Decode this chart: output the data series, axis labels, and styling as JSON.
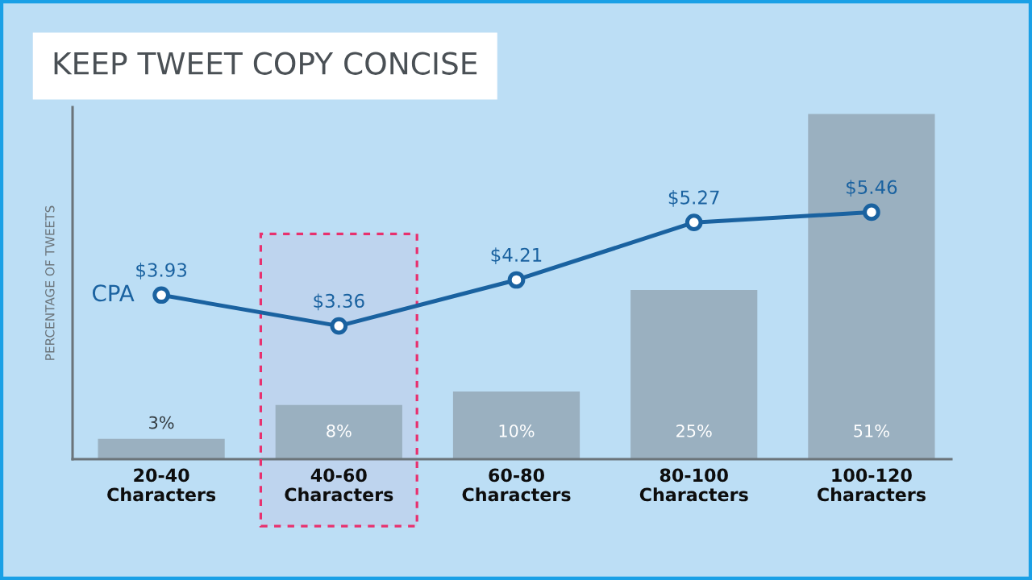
{
  "chart_data": {
    "type": "bar",
    "title": "KEEP TWEET COPY CONCISE",
    "ylabel": "PERCENTAGE OF TWEETS",
    "categories": [
      "20-40 Characters",
      "40-60 Characters",
      "60-80 Characters",
      "80-100 Characters",
      "100-120 Characters"
    ],
    "series": [
      {
        "color": "#9ab0c0",
        "values": [
          3,
          8,
          10,
          25,
          51
        ],
        "value_labels": [
          "3%",
          "8%",
          "10%",
          "25%",
          "51%"
        ]
      },
      {
        "type": "line",
        "name": "CPA",
        "axis": "y2",
        "color": "#1a62a0",
        "marker": "circle",
        "values": [
          3.93,
          3.36,
          4.21,
          5.27,
          5.46
        ],
        "value_labels": [
          "$3.93",
          "$3.36",
          "$4.21",
          "$5.27",
          "$5.46"
        ]
      }
    ],
    "ylim": [
      0,
      52
    ],
    "y2lim": [
      0.9,
      7.4
    ],
    "tick_labels": "x",
    "bands": [
      {
        "axis": "x",
        "from": "40-60 Characters",
        "to": "40-60 Characters",
        "color": "#e8306e"
      }
    ]
  }
}
